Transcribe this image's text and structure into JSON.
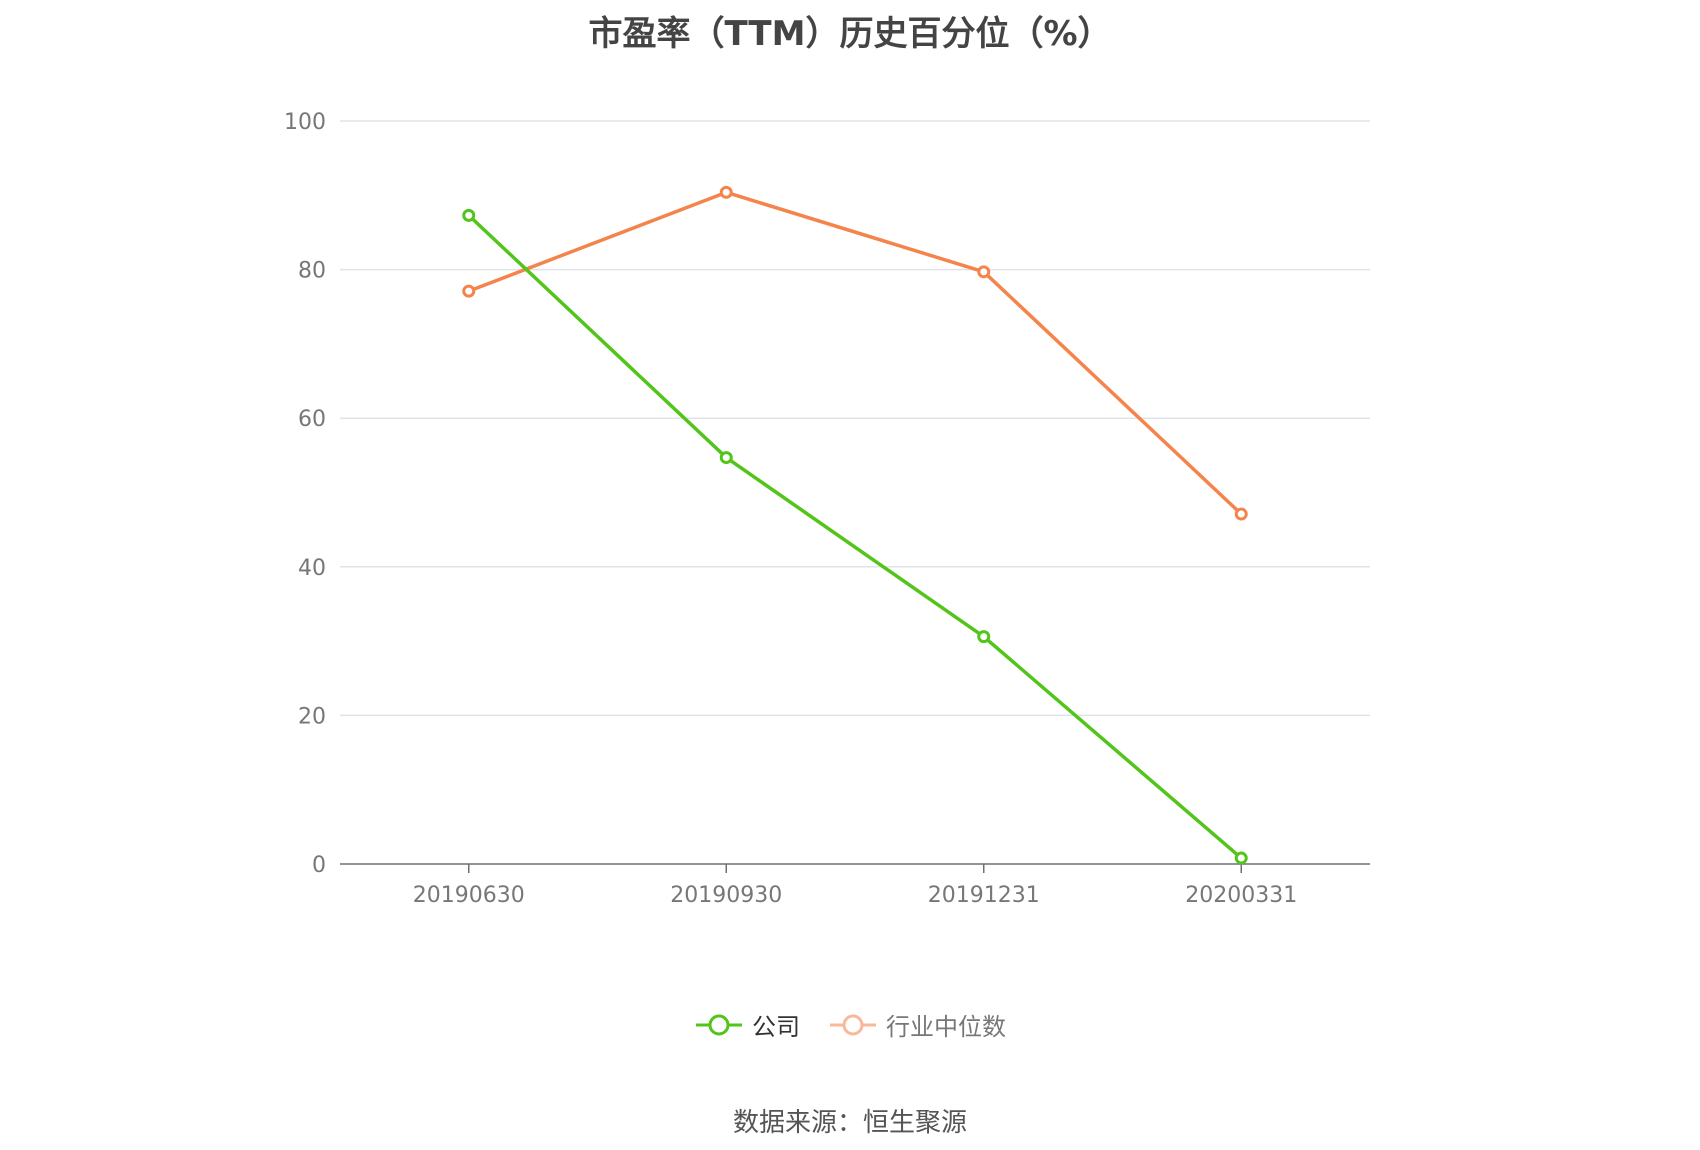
{
  "chart_data": {
    "type": "line",
    "title": "市盈率（TTM）历史百分位（%）",
    "xlabel": "",
    "ylabel": "",
    "categories": [
      "20190630",
      "20190930",
      "20191231",
      "20200331"
    ],
    "ylim": [
      0,
      100
    ],
    "yticks": [
      0,
      20,
      40,
      60,
      80,
      100
    ],
    "grid": true,
    "legend_position": "bottom",
    "series": [
      {
        "name": "公司",
        "color": "#52c41a",
        "values": [
          87.3,
          54.7,
          30.6,
          0.8
        ]
      },
      {
        "name": "行业中位数",
        "color": "#f5844c",
        "values": [
          77.1,
          90.4,
          79.7,
          47.1
        ]
      }
    ]
  },
  "legend": [
    {
      "label": "公司",
      "color": "#52c41a",
      "text_color": "#333333"
    },
    {
      "label": "行业中位数",
      "color": "#f9b89a",
      "text_color": "#777777"
    }
  ],
  "source": "数据来源：恒生聚源"
}
